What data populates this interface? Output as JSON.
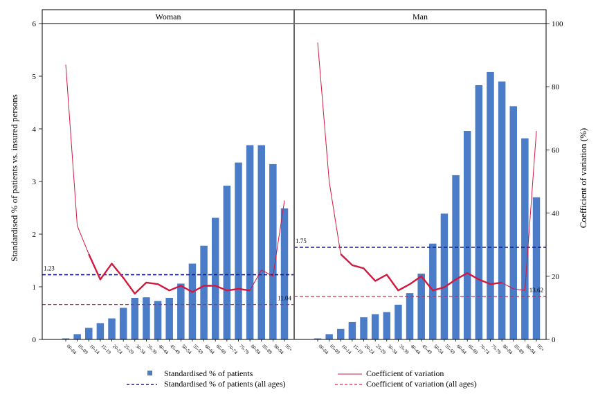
{
  "chart_data": {
    "type": "bar",
    "categories": [
      "00-04",
      "05-09",
      "10-14",
      "15-19",
      "20-24",
      "25-29",
      "30-34",
      "35-39",
      "40-44",
      "45-49",
      "50-54",
      "55-59",
      "60-64",
      "65-69",
      "70-74",
      "75-79",
      "80-84",
      "85-89",
      "90-94",
      "95+"
    ],
    "ylabel": "Standardised % of patients vs. insured persons",
    "y2label": "Coefficient of variation (%)",
    "ylim": [
      0,
      6
    ],
    "y2lim": [
      0,
      100
    ],
    "yticks": [
      0,
      1,
      2,
      3,
      4,
      5,
      6
    ],
    "y2ticks": [
      0,
      20,
      40,
      60,
      80,
      100
    ],
    "grid": false,
    "legend_placement": "bottom",
    "legend": {
      "bars": "Standardised % of patients",
      "cv": "Coefficient of variation",
      "bars_all": "Standardised % of patients (all ages)",
      "cv_all": "Coefficient of variation (all ages)"
    },
    "colors": {
      "bars": "#4a7cc7",
      "cv": "#d3173f",
      "bars_all": "#1a1a8c",
      "cv_all": "#e02040"
    },
    "panels": [
      {
        "title": "Woman",
        "values": [
          0.02,
          0.1,
          0.22,
          0.31,
          0.4,
          0.6,
          0.79,
          0.8,
          0.73,
          0.79,
          1.06,
          1.44,
          1.78,
          2.31,
          2.92,
          3.36,
          3.69,
          3.69,
          3.33,
          2.49
        ],
        "cv_thin": [
          87,
          36,
          27,
          null,
          null,
          null,
          null,
          null,
          null,
          null,
          null,
          null,
          null,
          null,
          null,
          null,
          null,
          22,
          20,
          44
        ],
        "cv_thick": [
          null,
          null,
          27,
          19,
          24,
          19.5,
          14.5,
          18,
          17.5,
          15.5,
          17,
          15,
          17,
          17,
          15.5,
          16,
          15.5,
          null,
          null,
          null
        ],
        "all_ages_value": 1.23,
        "all_ages_label": "1.23",
        "all_ages_cv": 11.04,
        "all_ages_cv_label": "11.04"
      },
      {
        "title": "Man",
        "values": [
          0.02,
          0.1,
          0.2,
          0.33,
          0.42,
          0.48,
          0.52,
          0.66,
          0.88,
          1.25,
          1.82,
          2.39,
          3.12,
          3.96,
          4.83,
          5.08,
          4.9,
          4.43,
          3.82,
          2.7
        ],
        "cv_thin": [
          94,
          50,
          27,
          null,
          null,
          null,
          null,
          null,
          null,
          null,
          null,
          null,
          null,
          null,
          null,
          null,
          null,
          16,
          15.5,
          66
        ],
        "cv_thick": [
          null,
          null,
          27,
          23.5,
          22.5,
          18.5,
          20.5,
          15.5,
          17.5,
          20,
          15.5,
          16.5,
          19,
          21,
          19,
          17.5,
          18,
          null,
          null,
          null
        ],
        "all_ages_value": 1.75,
        "all_ages_label": "1.75",
        "all_ages_cv": 13.62,
        "all_ages_cv_label": "13.62"
      }
    ]
  }
}
